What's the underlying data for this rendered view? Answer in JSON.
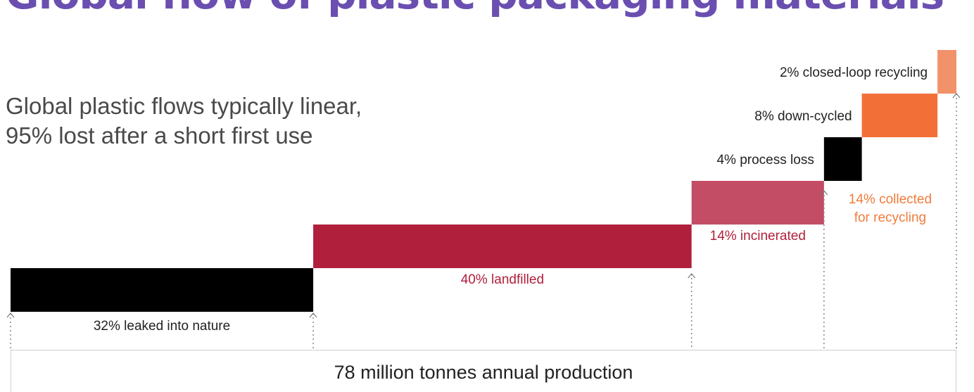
{
  "title": "Global flow of plastic packaging materials",
  "subtitle_lines": [
    "Global plastic flows typically linear,",
    "95% lost after a short first use"
  ],
  "base_label": "78 million tonnes annual production",
  "colors": {
    "leaked": "#000000",
    "landfilled": "#b01f3b",
    "incinerated": "#c24d64",
    "process_loss": "#000000",
    "down_cycled": "#f26f38",
    "closed_loop": "#f2926a",
    "collected": "#f07c3c",
    "dark_text": "#222222"
  },
  "chart_data": {
    "type": "waterfall",
    "unit": "%",
    "total": 100,
    "segments": [
      {
        "key": "leaked",
        "label": "32% leaked into nature",
        "value": 32
      },
      {
        "key": "landfilled",
        "label": "40% landfilled",
        "value": 40
      },
      {
        "key": "incinerated",
        "label": "14% incinerated",
        "value": 14
      },
      {
        "key": "process_loss",
        "label": "4% process loss",
        "value": 4
      },
      {
        "key": "down_cycled",
        "label": "8% down-cycled",
        "value": 8
      },
      {
        "key": "closed_loop",
        "label": "2% closed-loop recycling",
        "value": 2
      }
    ],
    "annotations": [
      {
        "key": "collected",
        "label_lines": [
          "14% collected",
          "for recycling"
        ],
        "value": 14
      }
    ]
  }
}
